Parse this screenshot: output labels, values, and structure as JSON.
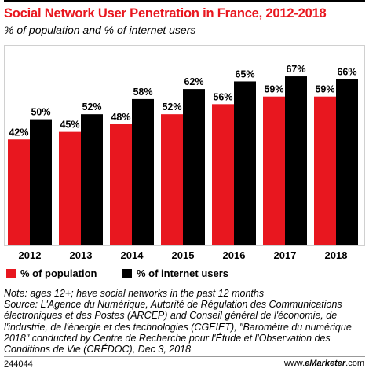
{
  "header": {
    "title": "Social Network User Penetration in France, 2012-2018",
    "subtitle": "% of population and % of internet users"
  },
  "chart_data": {
    "type": "bar",
    "categories": [
      "2012",
      "2013",
      "2014",
      "2015",
      "2016",
      "2017",
      "2018"
    ],
    "series": [
      {
        "name": "% of population",
        "values": [
          42,
          45,
          48,
          52,
          56,
          59,
          59
        ],
        "labels": [
          "42%",
          "45%",
          "48%",
          "52%",
          "56%",
          "59%",
          "59%"
        ],
        "color": "#e8171f"
      },
      {
        "name": "% of internet users",
        "values": [
          50,
          52,
          58,
          62,
          65,
          67,
          66
        ],
        "labels": [
          "50%",
          "52%",
          "58%",
          "62%",
          "65%",
          "67%",
          "66%"
        ],
        "color": "#000000"
      }
    ],
    "ylim": [
      0,
      72
    ],
    "grid": false,
    "legend_position": "bottom-left"
  },
  "footer": {
    "note": "Note: ages 12+; have social networks in the past 12 months",
    "source": "Source: L'Agence du Numérique, Autorité de Régulation des Communications électroniques et des Postes (ARCEP) and Conseil général de l'économie, de l'industrie, de l'énergie et des technologies (CGEIET), \"Baromètre du numérique 2018\" conducted by Centre de Recherche pour l'Étude et l'Observation des Conditions de Vie (CRÉDOC), Dec 3, 2018",
    "chart_id": "244044",
    "credit_prefix": "www.",
    "credit_brand": "eMarketer",
    "credit_suffix": ".com"
  },
  "colors": {
    "accent": "#e8171f",
    "dark": "#000000"
  }
}
